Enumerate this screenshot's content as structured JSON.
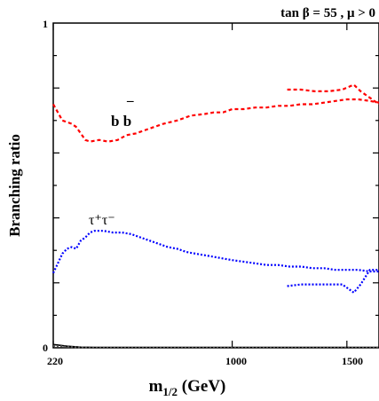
{
  "chart_data": {
    "type": "line",
    "title": "tan β = 55 ,  μ > 0",
    "xlabel": "m",
    "xlabel_sub": "1/2",
    "xlabel_unit": " (GeV)",
    "ylabel": "Branching ratio",
    "xlim": [
      220,
      1640
    ],
    "ylim": [
      0,
      1
    ],
    "x_tick_labels": [
      {
        "value": 220,
        "label": "220"
      },
      {
        "value": 1000,
        "label": "1000"
      },
      {
        "value": 1500,
        "label": "1500"
      }
    ],
    "y_tick_labels": [
      {
        "value": 0,
        "label": "0"
      },
      {
        "value": 1,
        "label": "1"
      }
    ],
    "annotations": [
      {
        "id": "bb",
        "text": "b b",
        "bar": "¯"
      },
      {
        "id": "tautau",
        "text": "τ⁺τ⁻"
      }
    ],
    "series": [
      {
        "id": "bb_main",
        "color": "#ff0000",
        "dash": "dashed",
        "x": [
          220,
          260,
          300,
          320,
          340,
          360,
          380,
          420,
          460,
          500,
          540,
          580,
          640,
          700,
          760,
          820,
          880,
          920,
          960,
          1000,
          1050,
          1100,
          1150,
          1200,
          1250,
          1300,
          1350,
          1400,
          1450,
          1500,
          1550,
          1600,
          1640
        ],
        "y": [
          0.75,
          0.7,
          0.69,
          0.68,
          0.66,
          0.64,
          0.635,
          0.64,
          0.635,
          0.64,
          0.655,
          0.66,
          0.675,
          0.69,
          0.7,
          0.715,
          0.72,
          0.725,
          0.725,
          0.735,
          0.735,
          0.74,
          0.74,
          0.745,
          0.745,
          0.75,
          0.75,
          0.755,
          0.76,
          0.765,
          0.765,
          0.76,
          0.755
        ]
      },
      {
        "id": "bb_upper",
        "color": "#ff0000",
        "dash": "dashed",
        "x": [
          1240,
          1300,
          1360,
          1420,
          1480,
          1530,
          1560,
          1600,
          1640
        ],
        "y": [
          0.795,
          0.795,
          0.79,
          0.79,
          0.795,
          0.81,
          0.79,
          0.77,
          0.75
        ]
      },
      {
        "id": "tautau_main",
        "color": "#0000ff",
        "dash": "dotted",
        "x": [
          220,
          240,
          260,
          280,
          300,
          320,
          340,
          360,
          380,
          400,
          440,
          480,
          520,
          560,
          600,
          640,
          680,
          720,
          760,
          800,
          840,
          880,
          920,
          960,
          1000,
          1050,
          1100,
          1150,
          1200,
          1250,
          1300,
          1350,
          1400,
          1450,
          1500,
          1550,
          1600,
          1640
        ],
        "y": [
          0.23,
          0.26,
          0.29,
          0.305,
          0.31,
          0.305,
          0.33,
          0.34,
          0.355,
          0.36,
          0.36,
          0.355,
          0.355,
          0.35,
          0.34,
          0.33,
          0.32,
          0.31,
          0.305,
          0.295,
          0.29,
          0.285,
          0.28,
          0.275,
          0.27,
          0.265,
          0.26,
          0.255,
          0.255,
          0.25,
          0.25,
          0.245,
          0.245,
          0.24,
          0.24,
          0.24,
          0.235,
          0.235
        ]
      },
      {
        "id": "tautau_lower",
        "color": "#0000ff",
        "dash": "dotted",
        "x": [
          1240,
          1300,
          1360,
          1420,
          1480,
          1530,
          1560,
          1600,
          1640
        ],
        "y": [
          0.19,
          0.195,
          0.195,
          0.195,
          0.195,
          0.17,
          0.195,
          0.24,
          0.24
        ]
      },
      {
        "id": "near_zero_solid",
        "color": "#000000",
        "dash": "solid",
        "x": [
          220,
          280,
          340,
          400,
          500,
          700,
          1000,
          1640
        ],
        "y": [
          0.01,
          0.005,
          0.002,
          0.001,
          0.001,
          0.001,
          0.001,
          0.001
        ]
      },
      {
        "id": "near_zero_dotted",
        "color": "#555555",
        "dash": "dotted",
        "x": [
          220,
          280,
          340,
          400,
          500,
          700,
          1000,
          1640
        ],
        "y": [
          0.006,
          0.003,
          0.001,
          0.0,
          0.0,
          0.0,
          0.0,
          0.0
        ]
      }
    ]
  }
}
